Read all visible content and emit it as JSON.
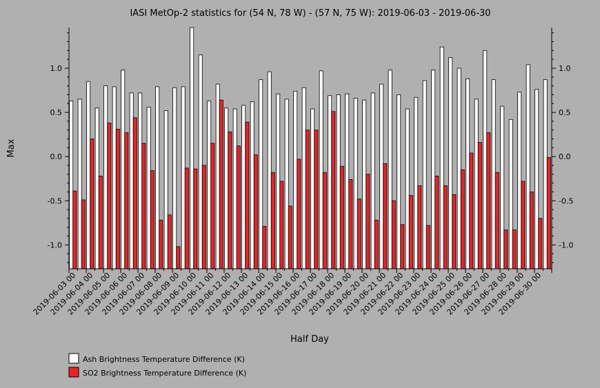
{
  "chart_data": {
    "type": "bar",
    "title": "IASI MetOp-2 statistics for (54 N, 78 W) - (57 N, 75 W): 2019-06-03 - 2019-06-30",
    "xlabel": "Half Day",
    "ylabel": "Max",
    "ylim": [
      -1.27,
      1.46
    ],
    "yticks": [
      -1.0,
      -0.5,
      0.0,
      0.5,
      1.0
    ],
    "ytick_labels": [
      "-1.0",
      "-0.5",
      "0.0",
      "0.5",
      "1.0"
    ],
    "grid": false,
    "legend_position": "bottom-left",
    "colors": {
      "background": "#b0b0b0",
      "ash": "#ffffff",
      "so2": "#ee2222"
    },
    "x": [
      "2019-06-03 00",
      "2019-06-03 12",
      "2019-06-04 00",
      "2019-06-04 12",
      "2019-06-05 00",
      "2019-06-05 12",
      "2019-06-06 00",
      "2019-06-06 12",
      "2019-06-07 00",
      "2019-06-07 12",
      "2019-06-08 00",
      "2019-06-08 12",
      "2019-06-09 00",
      "2019-06-09 12",
      "2019-06-10 00",
      "2019-06-10 12",
      "2019-06-11 00",
      "2019-06-11 12",
      "2019-06-12 00",
      "2019-06-12 12",
      "2019-06-13 00",
      "2019-06-13 12",
      "2019-06-14 00",
      "2019-06-14 12",
      "2019-06-15 00",
      "2019-06-15 12",
      "2019-06-16 00",
      "2019-06-16 12",
      "2019-06-17 00",
      "2019-06-17 12",
      "2019-06-18 00",
      "2019-06-18 12",
      "2019-06-19 00",
      "2019-06-19 12",
      "2019-06-20 00",
      "2019-06-20 12",
      "2019-06-21 00",
      "2019-06-21 12",
      "2019-06-22 00",
      "2019-06-22 12",
      "2019-06-23 00",
      "2019-06-23 12",
      "2019-06-24 00",
      "2019-06-24 12",
      "2019-06-25 00",
      "2019-06-25 12",
      "2019-06-26 00",
      "2019-06-26 12",
      "2019-06-27 00",
      "2019-06-27 12",
      "2019-06-28 00",
      "2019-06-28 12",
      "2019-06-29 00",
      "2019-06-29 12",
      "2019-06-30 00",
      "2019-06-30 12"
    ],
    "xtick_labels": [
      "2019-06-03 00",
      "2019-06-04 00",
      "2019-06-05 00",
      "2019-06-06 00",
      "2019-06-07 00",
      "2019-06-08 00",
      "2019-06-09 00",
      "2019-06-10 00",
      "2019-06-11 00",
      "2019-06-12 00",
      "2019-06-13 00",
      "2019-06-14 00",
      "2019-06-15 00",
      "2019-06-16 00",
      "2019-06-17 00",
      "2019-06-18 00",
      "2019-06-19 00",
      "2019-06-20 00",
      "2019-06-21 00",
      "2019-06-22 00",
      "2019-06-23 00",
      "2019-06-24 00",
      "2019-06-25 00",
      "2019-06-26 00",
      "2019-06-27 00",
      "2019-06-28 00",
      "2019-06-29 00",
      "2019-06-30 00"
    ],
    "series": [
      {
        "name": "Ash Brightness Temperature Difference (K)",
        "values": [
          0.63,
          0.65,
          0.85,
          0.55,
          0.8,
          0.79,
          0.98,
          0.72,
          0.72,
          0.56,
          0.79,
          0.52,
          0.78,
          0.79,
          1.46,
          1.15,
          0.63,
          0.82,
          0.55,
          0.54,
          0.58,
          0.62,
          0.87,
          0.96,
          0.71,
          0.65,
          0.74,
          0.78,
          0.54,
          0.97,
          0.69,
          0.7,
          0.71,
          0.66,
          0.64,
          0.72,
          0.82,
          0.98,
          0.7,
          0.54,
          0.67,
          0.86,
          0.98,
          1.24,
          1.12,
          1.0,
          0.88,
          0.65,
          1.2,
          0.87,
          0.57,
          0.42,
          0.73,
          1.04,
          0.76,
          0.87
        ]
      },
      {
        "name": "SO2 Brightness Temperature Difference (K)",
        "values": [
          -0.39,
          -0.49,
          0.2,
          -0.22,
          0.38,
          0.31,
          0.27,
          0.44,
          0.15,
          -0.16,
          -0.72,
          -0.66,
          -1.02,
          -0.13,
          -0.14,
          -0.1,
          0.15,
          0.64,
          0.28,
          0.12,
          0.39,
          0.02,
          -0.79,
          -0.18,
          -0.28,
          -0.56,
          -0.03,
          0.3,
          0.3,
          -0.18,
          0.51,
          -0.11,
          -0.26,
          -0.48,
          -0.2,
          -0.72,
          -0.08,
          -0.5,
          -0.77,
          -0.44,
          -0.33,
          -0.78,
          -0.22,
          -0.33,
          -0.43,
          -0.15,
          0.04,
          0.16,
          0.27,
          -0.18,
          -0.83,
          -0.83,
          -0.28,
          -0.4,
          -0.7,
          -0.01
        ]
      }
    ]
  }
}
